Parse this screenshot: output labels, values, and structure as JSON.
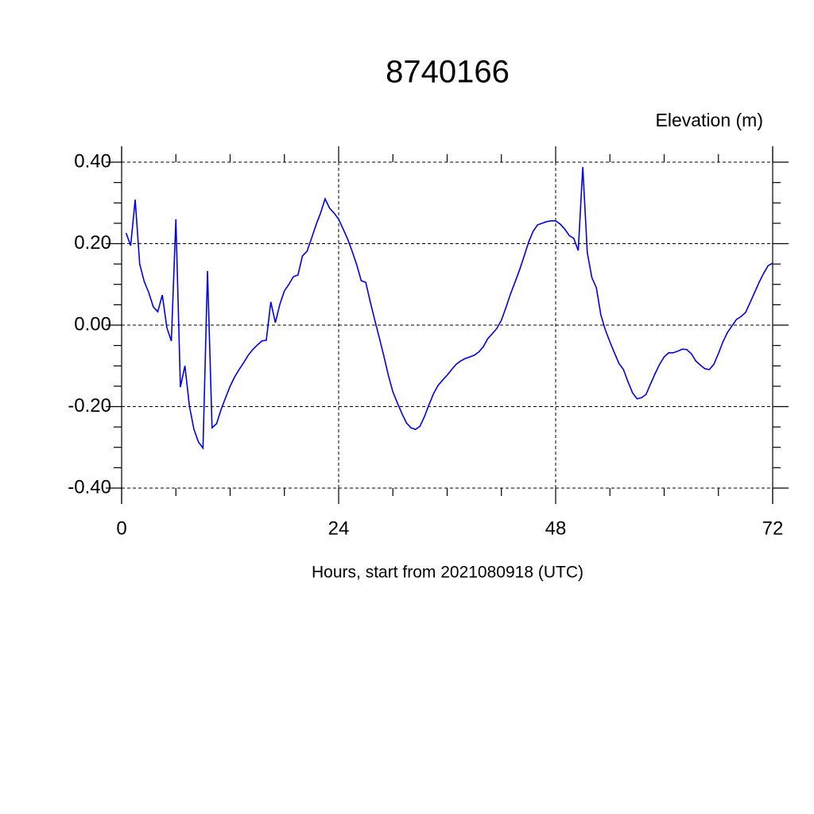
{
  "chart_data": {
    "type": "line",
    "title": "8740166",
    "y_label": "Elevation (m)",
    "x_label": "Hours, start from 2021080918 (UTC)",
    "xlim": [
      0,
      72
    ],
    "xticks": [
      0,
      24,
      48,
      72
    ],
    "ylim": [
      -0.4,
      0.4
    ],
    "yticks": [
      {
        "value": -0.4,
        "label": "-0.40"
      },
      {
        "value": -0.2,
        "label": "-0.20"
      },
      {
        "value": 0,
        "label": "0.00"
      },
      {
        "value": 0.2,
        "label": "0.20"
      },
      {
        "value": 0.4,
        "label": "0.40"
      }
    ],
    "grid": true,
    "series": [
      {
        "color": "#0000ee",
        "x": [
          0.5,
          1,
          1.5,
          2,
          2.5,
          3,
          3.5,
          4,
          4.5,
          5,
          5.5,
          6,
          6.5,
          7,
          7.5,
          8,
          8.5,
          9,
          9.5,
          10,
          10.5,
          11,
          11.5,
          12,
          12.5,
          13,
          13.5,
          14,
          14.5,
          15,
          15.5,
          16,
          16.5,
          17,
          17.5,
          18,
          18.5,
          19,
          19.5,
          20,
          20.5,
          21,
          21.5,
          22,
          22.5,
          23,
          23.5,
          24,
          24.5,
          25,
          25.5,
          26,
          26.5,
          27,
          27.5,
          28,
          28.5,
          29,
          29.5,
          30,
          30.5,
          31,
          31.5,
          32,
          32.5,
          33,
          33.5,
          34,
          34.5,
          35,
          35.5,
          36,
          36.5,
          37,
          37.5,
          38,
          38.5,
          39,
          39.5,
          40,
          40.5,
          41,
          41.5,
          42,
          42.5,
          43,
          43.5,
          44,
          44.5,
          45,
          45.5,
          46,
          46.5,
          47,
          47.5,
          48,
          48.5,
          49,
          49.5,
          50,
          50.5,
          51,
          51.5,
          52,
          52.5,
          53,
          53.5,
          54,
          54.5,
          55,
          55.5,
          56,
          56.5,
          57,
          57.5,
          58,
          58.5,
          59,
          59.5,
          60,
          60.5,
          61,
          61.5,
          62,
          62.5,
          63,
          63.5,
          64,
          64.5,
          65,
          65.5,
          66,
          66.5,
          67,
          67.5,
          68,
          68.5,
          69,
          69.5,
          70,
          70.5,
          71,
          71.5,
          72
        ],
        "values": [
          0.226,
          0.195,
          0.308,
          0.15,
          0.107,
          0.08,
          0.045,
          0.033,
          0.074,
          -0.006,
          -0.039,
          0.26,
          -0.152,
          -0.1,
          -0.199,
          -0.256,
          -0.287,
          -0.302,
          0.133,
          -0.252,
          -0.242,
          -0.207,
          -0.178,
          -0.15,
          -0.127,
          -0.109,
          -0.092,
          -0.074,
          -0.06,
          -0.049,
          -0.039,
          -0.037,
          0.057,
          0.006,
          0.051,
          0.084,
          0.1,
          0.119,
          0.123,
          0.17,
          0.181,
          0.213,
          0.246,
          0.275,
          0.31,
          0.287,
          0.275,
          0.26,
          0.236,
          0.211,
          0.181,
          0.148,
          0.109,
          0.105,
          0.057,
          0.012,
          -0.031,
          -0.076,
          -0.123,
          -0.164,
          -0.191,
          -0.217,
          -0.24,
          -0.252,
          -0.256,
          -0.248,
          -0.224,
          -0.195,
          -0.168,
          -0.148,
          -0.135,
          -0.123,
          -0.109,
          -0.096,
          -0.088,
          -0.082,
          -0.078,
          -0.074,
          -0.066,
          -0.053,
          -0.033,
          -0.021,
          -0.008,
          0.012,
          0.043,
          0.076,
          0.105,
          0.135,
          0.168,
          0.203,
          0.23,
          0.246,
          0.25,
          0.254,
          0.256,
          0.256,
          0.248,
          0.236,
          0.22,
          0.213,
          0.183,
          0.388,
          0.178,
          0.117,
          0.092,
          0.025,
          -0.012,
          -0.041,
          -0.068,
          -0.094,
          -0.109,
          -0.139,
          -0.166,
          -0.181,
          -0.178,
          -0.17,
          -0.144,
          -0.119,
          -0.096,
          -0.078,
          -0.068,
          -0.068,
          -0.064,
          -0.059,
          -0.06,
          -0.07,
          -0.088,
          -0.098,
          -0.107,
          -0.109,
          -0.096,
          -0.07,
          -0.041,
          -0.018,
          -0.002,
          0.014,
          0.021,
          0.031,
          0.055,
          0.08,
          0.105,
          0.127,
          0.146,
          0.152
        ]
      }
    ]
  }
}
